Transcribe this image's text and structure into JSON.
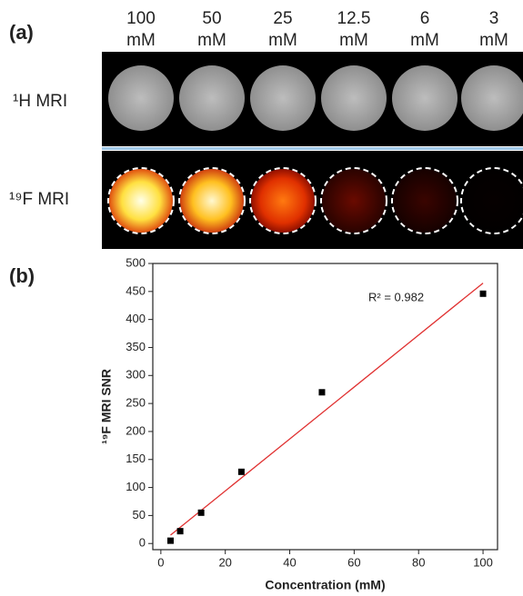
{
  "panel_a": {
    "label": "(a)",
    "concentrations": [
      {
        "value": "100",
        "unit": "mM"
      },
      {
        "value": "50",
        "unit": "mM"
      },
      {
        "value": "25",
        "unit": "mM"
      },
      {
        "value": "12.5",
        "unit": "mM"
      },
      {
        "value": "6",
        "unit": "mM"
      },
      {
        "value": "3",
        "unit": "mM"
      }
    ],
    "rows": [
      "¹H MRI",
      "¹⁹F MRI"
    ]
  },
  "panel_b": {
    "label": "(b)"
  },
  "chart_data": {
    "type": "scatter",
    "x_label": "Concentration (mM)",
    "y_label": "¹⁹F MRI SNR",
    "annotation": "R² = 0.982",
    "x": [
      3,
      6,
      12.5,
      25,
      50,
      100
    ],
    "values": [
      5,
      22,
      55,
      128,
      270,
      446
    ],
    "color": "#000000",
    "fit": {
      "x": [
        3,
        100
      ],
      "y": [
        15,
        465
      ],
      "color": "#e03030"
    },
    "xlim": [
      -2.5,
      104.5
    ],
    "xticks": [
      0,
      20,
      40,
      60,
      80,
      100
    ],
    "ylim": [
      -11,
      500
    ],
    "yticks": [
      0,
      50,
      100,
      150,
      200,
      250,
      300,
      350,
      400,
      450,
      500
    ]
  }
}
